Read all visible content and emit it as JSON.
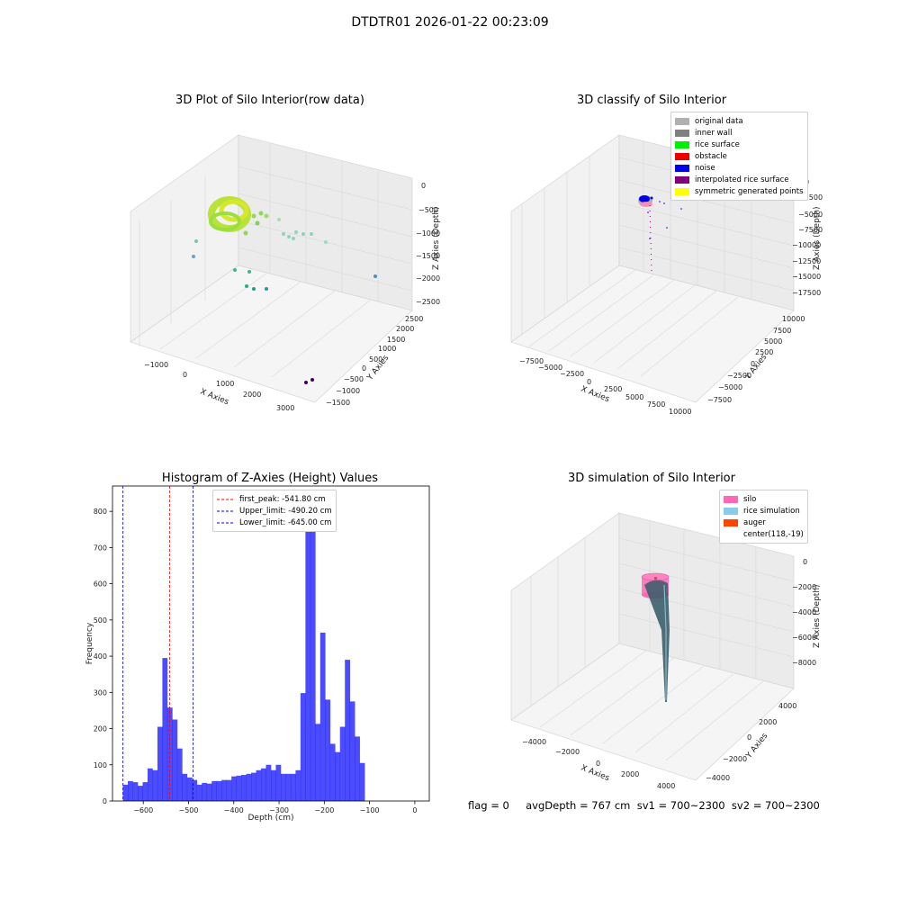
{
  "figure": {
    "suptitle": "DTDTR01 2026-01-22 00:23:09"
  },
  "panels": {
    "raw3d": {
      "title": "3D Plot of Silo Interior(row data)",
      "xlabel": "X Axies",
      "ylabel": "Y Axies",
      "zlabel": "Z Axies (Depth)",
      "xticks": [
        "−1000",
        "0",
        "1000",
        "2000",
        "3000"
      ],
      "yticks": [
        "2500",
        "2000",
        "1500",
        "1000",
        "500",
        "0",
        "−500",
        "−1000",
        "−1500"
      ],
      "zticks": [
        "0",
        "−500",
        "−1000",
        "−1500",
        "−2000",
        "−2500"
      ]
    },
    "classify3d": {
      "title": "3D classify of Silo Interior",
      "xlabel": "X Axies",
      "ylabel": "Y Axies",
      "zlabel": "Z Axies (Depth)",
      "xticks": [
        "−7500",
        "−5000",
        "−2500",
        "0",
        "2500",
        "5000",
        "7500",
        "10000"
      ],
      "yticks": [
        "10000",
        "7500",
        "5000",
        "2500",
        "0",
        "−2500",
        "−5000",
        "−7500"
      ],
      "zticks": [
        "0",
        "−2500",
        "−5000",
        "−7500",
        "−10000",
        "−12500",
        "−15000",
        "−17500"
      ],
      "legend": [
        {
          "label": "original data",
          "color": "#b0b0b0"
        },
        {
          "label": "inner wall",
          "color": "#808080"
        },
        {
          "label": "rice surface",
          "color": "#00ee00"
        },
        {
          "label": "obstacle",
          "color": "#ee0000"
        },
        {
          "label": "noise",
          "color": "#0000ee"
        },
        {
          "label": "interpolated rice surface",
          "color": "#800080"
        },
        {
          "label": "symmetric generated points",
          "color": "#ffff00"
        }
      ]
    },
    "histogram": {
      "title": "Histogram of Z-Axies (Height) Values",
      "legend": [
        {
          "label": "first_peak: -541.80 cm",
          "color": "#ff0000"
        },
        {
          "label": "Upper_limit: -490.20 cm",
          "color": "#0000ff"
        },
        {
          "label": "Lower_limit: -645.00 cm",
          "color": "#0000ff"
        }
      ]
    },
    "sim3d": {
      "title": "3D simulation of Silo Interior",
      "xlabel": "X Axies",
      "ylabel": "Y Axies",
      "zlabel": "Z Axies (Depth)",
      "xticks": [
        "−4000",
        "−2000",
        "0",
        "2000",
        "4000"
      ],
      "yticks": [
        "4000",
        "2000",
        "0",
        "−2000",
        "−4000"
      ],
      "zticks": [
        "0",
        "−2000",
        "−4000",
        "−6000",
        "−8000"
      ],
      "legend": [
        {
          "label": "silo",
          "color": "#ff69b4"
        },
        {
          "label": "rice simulation",
          "color": "#87ceeb"
        },
        {
          "label": "auger",
          "color": "#ff4500"
        },
        {
          "label": "center(118,-19)",
          "color": ""
        }
      ]
    }
  },
  "footer": {
    "text": "flag = 0     avgDepth = 767 cm  sv1 = 700~2300  sv2 = 700~2300"
  },
  "chart_data": {
    "type": "bar",
    "title": "Histogram of Z-Axies (Height) Values",
    "xlabel": "Depth (cm)",
    "ylabel": "Frequency",
    "xlim": [
      -668,
      32
    ],
    "ylim": [
      0,
      870
    ],
    "xticks": [
      -600,
      -500,
      -400,
      -300,
      -200,
      -100,
      0
    ],
    "yticks": [
      0,
      100,
      200,
      300,
      400,
      500,
      600,
      700,
      800
    ],
    "bin_start": -645,
    "bin_width": 10.9,
    "values": [
      45,
      55,
      52,
      42,
      52,
      90,
      85,
      205,
      395,
      258,
      225,
      145,
      75,
      65,
      58,
      45,
      50,
      48,
      55,
      55,
      58,
      58,
      68,
      70,
      72,
      75,
      78,
      85,
      90,
      100,
      85,
      100,
      75,
      75,
      75,
      85,
      298,
      745,
      828,
      213,
      465,
      280,
      158,
      135,
      205,
      390,
      275,
      178,
      105
    ],
    "color": "#0000ff",
    "vlines": [
      {
        "label": "first_peak: -541.80 cm",
        "x": -541.8,
        "color": "#ff0000"
      },
      {
        "label": "Upper_limit: -490.20 cm",
        "x": -490.2,
        "color": "#0000ff"
      },
      {
        "label": "Lower_limit: -645.00 cm",
        "x": -645.0,
        "color": "#0000ff"
      }
    ],
    "legend_position": "top-center"
  }
}
